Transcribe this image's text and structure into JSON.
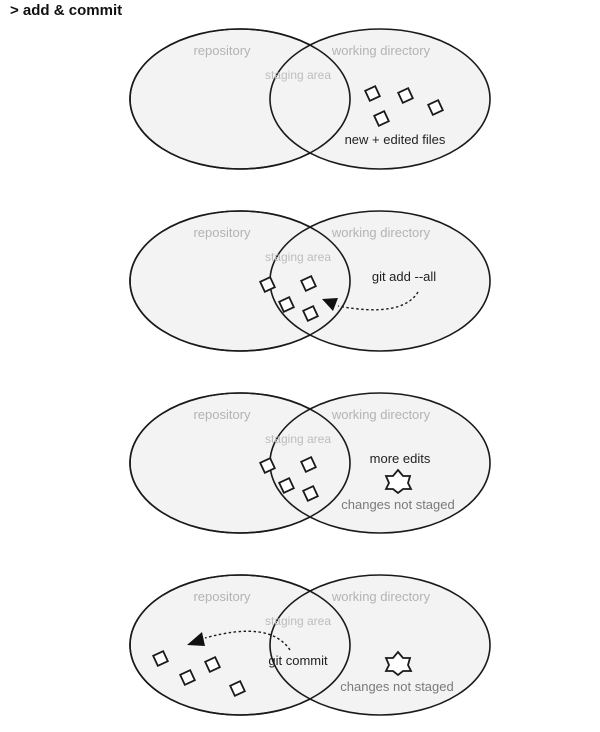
{
  "heading": "> add & commit",
  "labels": {
    "repository": "repository",
    "staging_area": "staging area",
    "working_directory": "working directory"
  },
  "panels": [
    {
      "annotation": "new + edited files"
    },
    {
      "annotation": "git add --all"
    },
    {
      "annotation": "more edits",
      "note": "changes not staged"
    },
    {
      "annotation": "git commit",
      "note": "changes not staged"
    }
  ]
}
